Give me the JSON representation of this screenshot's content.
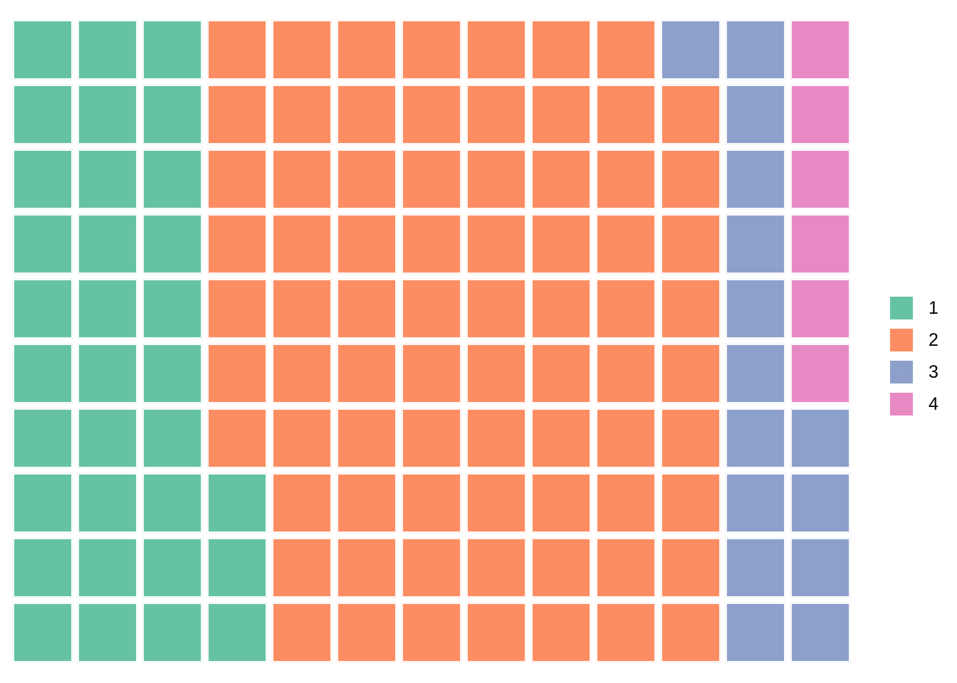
{
  "background_color": "#FFFFFF",
  "chart_data": {
    "type": "waffle",
    "title": "",
    "xlabel": "",
    "ylabel": "",
    "categories": [
      "1",
      "2",
      "3",
      "4"
    ],
    "values": [
      33,
      76,
      15,
      6
    ],
    "colors": [
      "#66C2A5",
      "#FC8D62",
      "#8DA0CB",
      "#E78AC3"
    ],
    "grid": {
      "rows": 10,
      "cols": 13,
      "fill_direction": "bottom-up-by-column",
      "cells": [
        [
          "1",
          "1",
          "1",
          "2",
          "2",
          "2",
          "2",
          "2",
          "2",
          "2",
          "3",
          "3",
          "4"
        ],
        [
          "1",
          "1",
          "1",
          "2",
          "2",
          "2",
          "2",
          "2",
          "2",
          "2",
          "2",
          "3",
          "4"
        ],
        [
          "1",
          "1",
          "1",
          "2",
          "2",
          "2",
          "2",
          "2",
          "2",
          "2",
          "2",
          "3",
          "4"
        ],
        [
          "1",
          "1",
          "1",
          "2",
          "2",
          "2",
          "2",
          "2",
          "2",
          "2",
          "2",
          "3",
          "4"
        ],
        [
          "1",
          "1",
          "1",
          "2",
          "2",
          "2",
          "2",
          "2",
          "2",
          "2",
          "2",
          "3",
          "4"
        ],
        [
          "1",
          "1",
          "1",
          "2",
          "2",
          "2",
          "2",
          "2",
          "2",
          "2",
          "2",
          "3",
          "4"
        ],
        [
          "1",
          "1",
          "1",
          "2",
          "2",
          "2",
          "2",
          "2",
          "2",
          "2",
          "2",
          "3",
          "3"
        ],
        [
          "1",
          "1",
          "1",
          "1",
          "2",
          "2",
          "2",
          "2",
          "2",
          "2",
          "2",
          "3",
          "3"
        ],
        [
          "1",
          "1",
          "1",
          "1",
          "2",
          "2",
          "2",
          "2",
          "2",
          "2",
          "2",
          "3",
          "3"
        ],
        [
          "1",
          "1",
          "1",
          "1",
          "2",
          "2",
          "2",
          "2",
          "2",
          "2",
          "2",
          "3",
          "3"
        ]
      ]
    },
    "legend": {
      "position": "right",
      "entries": [
        {
          "label": "1",
          "color": "#66C2A5"
        },
        {
          "label": "2",
          "color": "#FC8D62"
        },
        {
          "label": "3",
          "color": "#8DA0CB"
        },
        {
          "label": "4",
          "color": "#E78AC3"
        }
      ]
    }
  }
}
